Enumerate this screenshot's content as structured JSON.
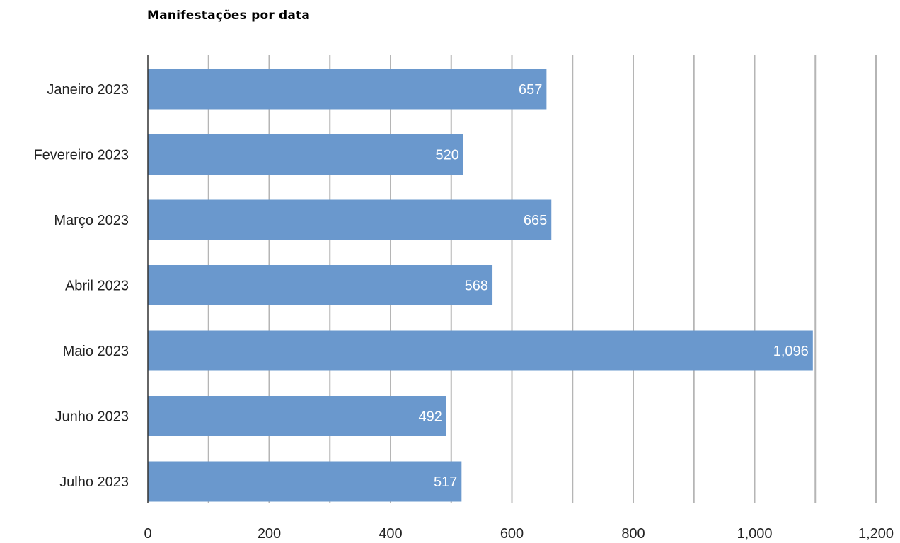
{
  "chart_data": {
    "type": "bar",
    "orientation": "horizontal",
    "title": "Manifestações por data",
    "xlabel": "",
    "ylabel": "",
    "categories": [
      "Janeiro 2023",
      "Fevereiro 2023",
      "Março 2023",
      "Abril 2023",
      "Maio 2023",
      "Junho 2023",
      "Julho 2023"
    ],
    "values": [
      657,
      520,
      665,
      568,
      1096,
      492,
      517
    ],
    "data_labels": [
      "657",
      "520",
      "665",
      "568",
      "1,096",
      "492",
      "517"
    ],
    "xlim": [
      0,
      1200
    ],
    "x_ticks": [
      0,
      200,
      400,
      600,
      800,
      1000,
      1200
    ],
    "x_tick_labels": [
      "0",
      "200",
      "400",
      "600",
      "800",
      "1,000",
      "1,200"
    ],
    "grid": true,
    "legend": "none",
    "bar_color": "#6a98cd",
    "grid_color": "#b5b5b5"
  }
}
